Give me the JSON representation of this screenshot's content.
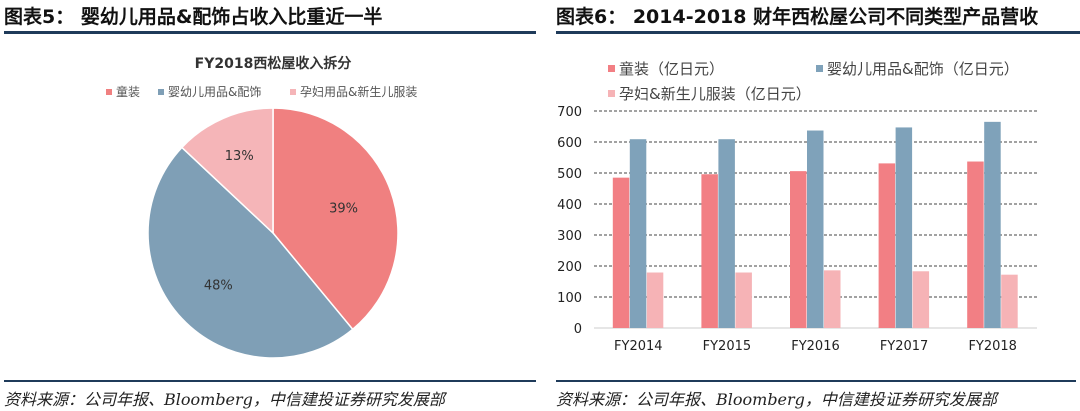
{
  "left_panel": {
    "title": "图表5：  婴幼儿用品&配饰占收入比重近一半",
    "source": "资料来源：公司年报、Bloomberg，中信建投证券研究发展部"
  },
  "right_panel": {
    "title": "图表6：  2014-2018 财年西松屋公司不同类型产品营收",
    "source": "资料来源：公司年报、Bloomberg，中信建投证券研究发展部"
  },
  "chart_data": [
    {
      "type": "pie",
      "title": "FY2018西松屋收入拆分",
      "legend_position": "top",
      "slices": [
        {
          "name": "童装",
          "value": 39,
          "label": "39%",
          "color": "#f08080"
        },
        {
          "name": "婴幼儿用品&配饰",
          "value": 48,
          "label": "48%",
          "color": "#7f9fb6"
        },
        {
          "name": "孕妇用品&新生儿服装",
          "value": 13,
          "label": "13%",
          "color": "#f5b5b8"
        }
      ]
    },
    {
      "type": "bar",
      "categories": [
        "FY2014",
        "FY2015",
        "FY2016",
        "FY2017",
        "FY2018"
      ],
      "series": [
        {
          "name": "童装（亿日元）",
          "values": [
            485,
            496,
            506,
            531,
            537
          ],
          "color": "#f27f84"
        },
        {
          "name": "婴幼儿用品&配饰（亿日元）",
          "values": [
            609,
            609,
            637,
            647,
            665
          ],
          "color": "#7fa2ba"
        },
        {
          "name": "孕妇&新生儿服装（亿日元）",
          "values": [
            179,
            179,
            186,
            183,
            172
          ],
          "color": "#f6b3b6"
        }
      ],
      "ylim": [
        0,
        700
      ],
      "yticks": [
        "0",
        "100",
        "200",
        "300",
        "400",
        "500",
        "600",
        "700"
      ],
      "grid": true,
      "legend_position": "top"
    }
  ]
}
